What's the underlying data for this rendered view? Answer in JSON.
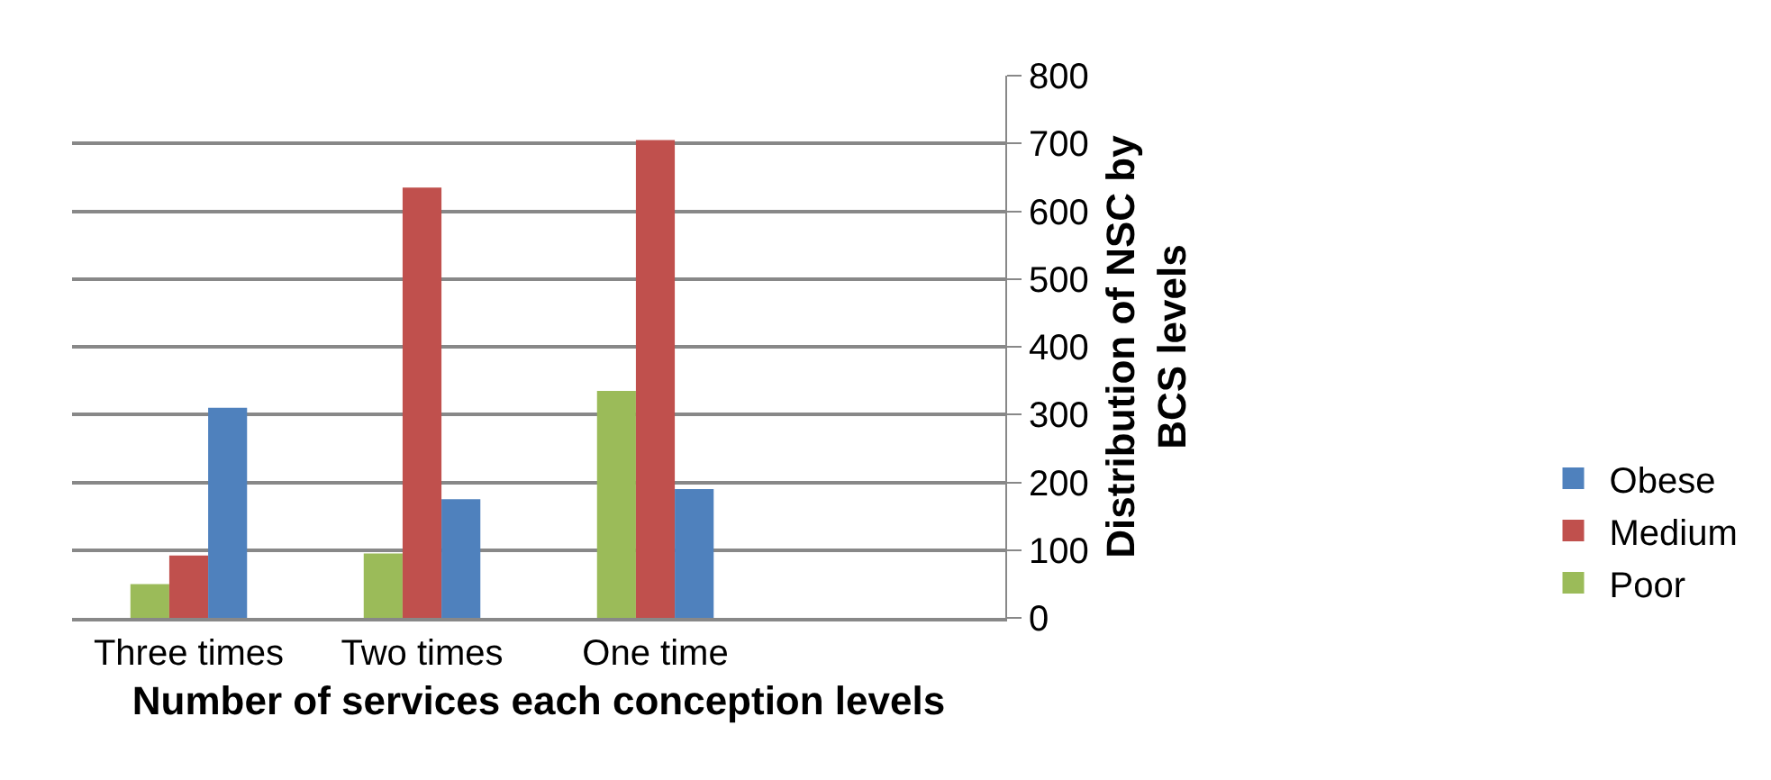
{
  "chart_data": {
    "type": "bar",
    "xlabel": "Number of services each conception levels",
    "ylabel": "Distribution of NSC by BCS levels",
    "categories": [
      "Three times",
      "Two times",
      "One time",
      null
    ],
    "series": [
      {
        "name": "Poor",
        "color": "#9bbb59",
        "values": [
          50,
          95,
          335,
          null
        ]
      },
      {
        "name": "Medium",
        "color": "#c0504d",
        "values": [
          92,
          635,
          705,
          null
        ]
      },
      {
        "name": "Obese",
        "color": "#4f81bd",
        "values": [
          310,
          175,
          190,
          null
        ]
      }
    ],
    "ylim": [
      0,
      800
    ],
    "yticks": [
      0,
      100,
      200,
      300,
      400,
      500,
      600,
      700,
      800
    ],
    "grid": "y",
    "legend": "bottom right"
  }
}
